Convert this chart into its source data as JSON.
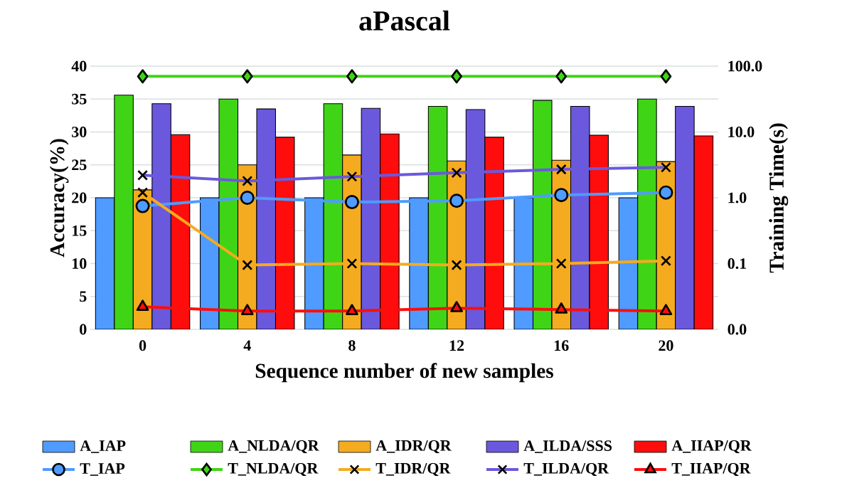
{
  "chart_data": {
    "type": "bar",
    "title": "aPascal",
    "xlabel": "Sequence number of new samples",
    "ylabel": "Accuracy(%)",
    "y2label": "Training Time(s)",
    "categories": [
      "0",
      "4",
      "8",
      "12",
      "16",
      "20"
    ],
    "series": [
      {
        "name": "A_IAP",
        "color": "#4f9bff",
        "values": [
          20,
          20,
          20,
          20,
          20,
          20
        ]
      },
      {
        "name": "A_NLDA/QR",
        "color": "#3fd516",
        "values": [
          35.6,
          35.0,
          34.3,
          33.9,
          34.8,
          35.0
        ]
      },
      {
        "name": "A_IDR/QR",
        "color": "#f5ab1f",
        "values": [
          21.2,
          25.0,
          26.5,
          25.6,
          25.7,
          25.5
        ]
      },
      {
        "name": "A_ILDA/SSS",
        "color": "#6a59dd",
        "values": [
          34.3,
          33.5,
          33.6,
          33.4,
          33.9,
          33.9
        ]
      },
      {
        "name": "A_IIAP/QR",
        "color": "#ff0d0d",
        "values": [
          29.6,
          29.2,
          29.7,
          29.2,
          29.5,
          29.4
        ]
      },
      {
        "name": "T_IAP",
        "type": "line",
        "axis": "y2",
        "marker": "circle",
        "color": "#4f9bff",
        "values": [
          0.75,
          1.0,
          0.86,
          0.9,
          1.1,
          1.2
        ]
      },
      {
        "name": "T_NLDA/QR",
        "type": "line",
        "axis": "y2",
        "marker": "diamond",
        "color": "#3fd516",
        "values": [
          70,
          70,
          70,
          70,
          70,
          70
        ]
      },
      {
        "name": "T_IDR/QR",
        "type": "line",
        "axis": "y2",
        "marker": "cross",
        "color": "#f5ab1f",
        "values": [
          1.2,
          0.095,
          0.1,
          0.095,
          0.1,
          0.11
        ]
      },
      {
        "name": "T_ILDA/QR",
        "type": "line",
        "axis": "y2",
        "marker": "cross",
        "color": "#6a59dd",
        "values": [
          2.2,
          1.8,
          2.1,
          2.4,
          2.7,
          2.9
        ]
      },
      {
        "name": "T_IIAP/QR",
        "type": "line",
        "axis": "y2",
        "marker": "triangle",
        "color": "#ff0d0d",
        "values": [
          0.022,
          0.019,
          0.019,
          0.021,
          0.02,
          0.019
        ]
      }
    ],
    "ylim": [
      0,
      40
    ],
    "yticks": [
      0,
      5,
      10,
      15,
      20,
      25,
      30,
      35,
      40
    ],
    "log": "y2",
    "y2lim": [
      0.01,
      100
    ],
    "y2ticks": [
      {
        "value": 0.01,
        "label": "0.0"
      },
      {
        "value": 0.1,
        "label": "0.1"
      },
      {
        "value": 1,
        "label": "1.0"
      },
      {
        "value": 10,
        "label": "10.0"
      },
      {
        "value": 100,
        "label": "100.0"
      }
    ],
    "grid": "y",
    "legend": "bottom"
  }
}
